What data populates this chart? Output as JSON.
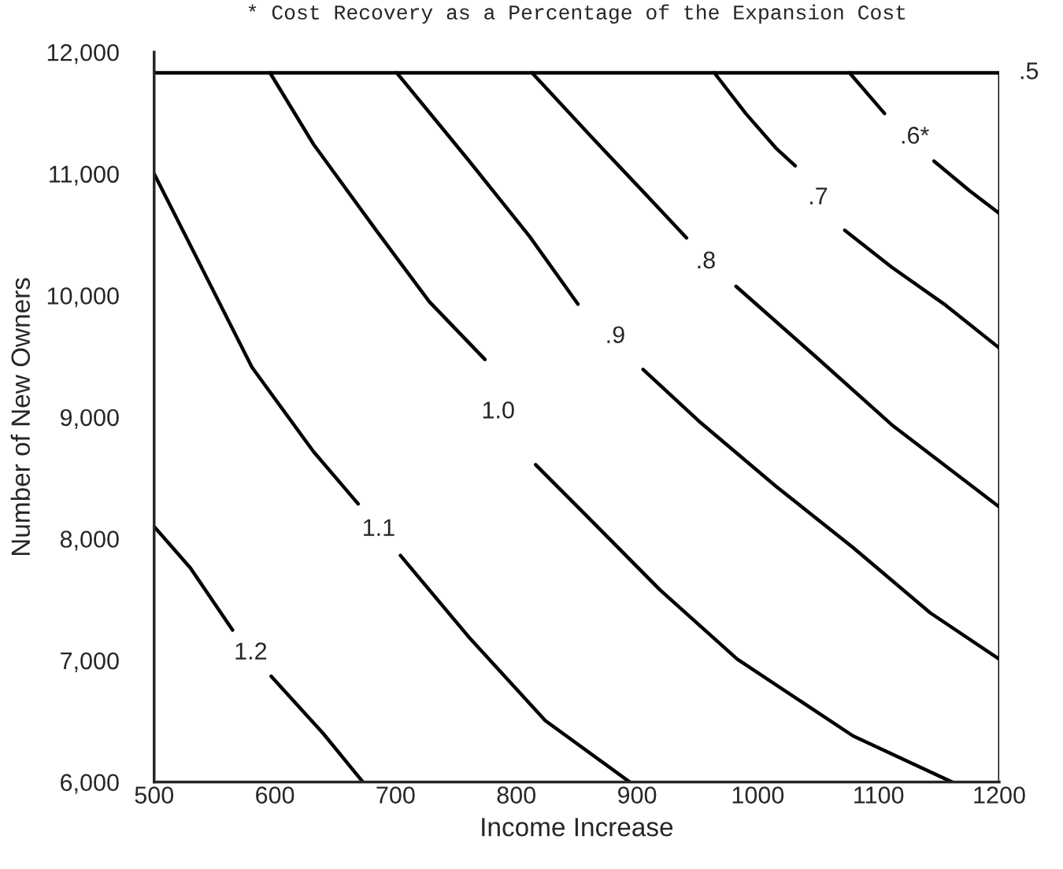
{
  "chart_data": {
    "type": "line",
    "title": "* Cost Recovery as a Percentage of the Expansion Cost",
    "xlabel": "Income Increase",
    "ylabel": "Number of New Owners",
    "xlim": [
      500,
      1200
    ],
    "ylim": [
      6000,
      12000
    ],
    "xticks": [
      500,
      600,
      700,
      800,
      900,
      1000,
      1100,
      1200
    ],
    "yticks": [
      {
        "value": 6000,
        "label": "6,000"
      },
      {
        "value": 7000,
        "label": "7,000"
      },
      {
        "value": 8000,
        "label": "8,000"
      },
      {
        "value": 9000,
        "label": "9,000"
      },
      {
        "value": 10000,
        "label": "10,000"
      },
      {
        "value": 11000,
        "label": "11,000"
      },
      {
        "value": 12000,
        "label": "12,000"
      }
    ],
    "grid": false,
    "legend": false,
    "marker": "none",
    "line_style": "solid",
    "series": [
      {
        "name": ".5",
        "color": "#000000",
        "x": [
          500,
          1200
        ],
        "values": [
          11830,
          11830
        ]
      },
      {
        "name": ".6*",
        "color": "#000000",
        "x": [
          1076,
          1105,
          1130,
          1146,
          1175,
          1200
        ],
        "values": [
          11830,
          11496,
          null,
          11104,
          10864,
          10675
        ]
      },
      {
        "name": ".7",
        "color": "#000000",
        "x": [
          964,
          990,
          1015,
          1031,
          1050,
          1072,
          1111,
          1156,
          1200
        ],
        "values": [
          11830,
          11496,
          11212,
          11066,
          null,
          10536,
          10232,
          9917,
          9569
        ]
      },
      {
        "name": ".8",
        "color": "#000000",
        "x": [
          813,
          862,
          907,
          941,
          957,
          982,
          1047,
          1111,
          1200
        ],
        "values": [
          11830,
          11306,
          10833,
          10473,
          null,
          10075,
          9506,
          8937,
          8262
        ]
      },
      {
        "name": ".9",
        "color": "#000000",
        "x": [
          701,
          760,
          811,
          851,
          882,
          905,
          951,
          1015,
          1079,
          1143,
          1200
        ],
        "values": [
          11830,
          11117,
          10485,
          9929,
          null,
          9392,
          8969,
          8432,
          7927,
          7390,
          7011
        ]
      },
      {
        "name": "1.0",
        "color": "#000000",
        "x": [
          596,
          632,
          683,
          728,
          774,
          785,
          816,
          856,
          919,
          983,
          1079,
          1161
        ],
        "values": [
          11830,
          11243,
          10548,
          9948,
          9474,
          null,
          8609,
          8211,
          7580,
          7011,
          6379,
          6000
        ]
      },
      {
        "name": "1.1",
        "color": "#000000",
        "x": [
          500,
          536,
          581,
          632,
          669,
          686,
          704,
          760,
          824,
          894
        ],
        "values": [
          11000,
          10295,
          9410,
          8716,
          8287,
          null,
          7863,
          7200,
          6505,
          6000
        ]
      },
      {
        "name": "1.2",
        "color": "#000000",
        "x": [
          500,
          530,
          565,
          580,
          597,
          640,
          673
        ],
        "values": [
          8100,
          7760,
          7250,
          null,
          6870,
          6400,
          6000
        ]
      }
    ]
  }
}
